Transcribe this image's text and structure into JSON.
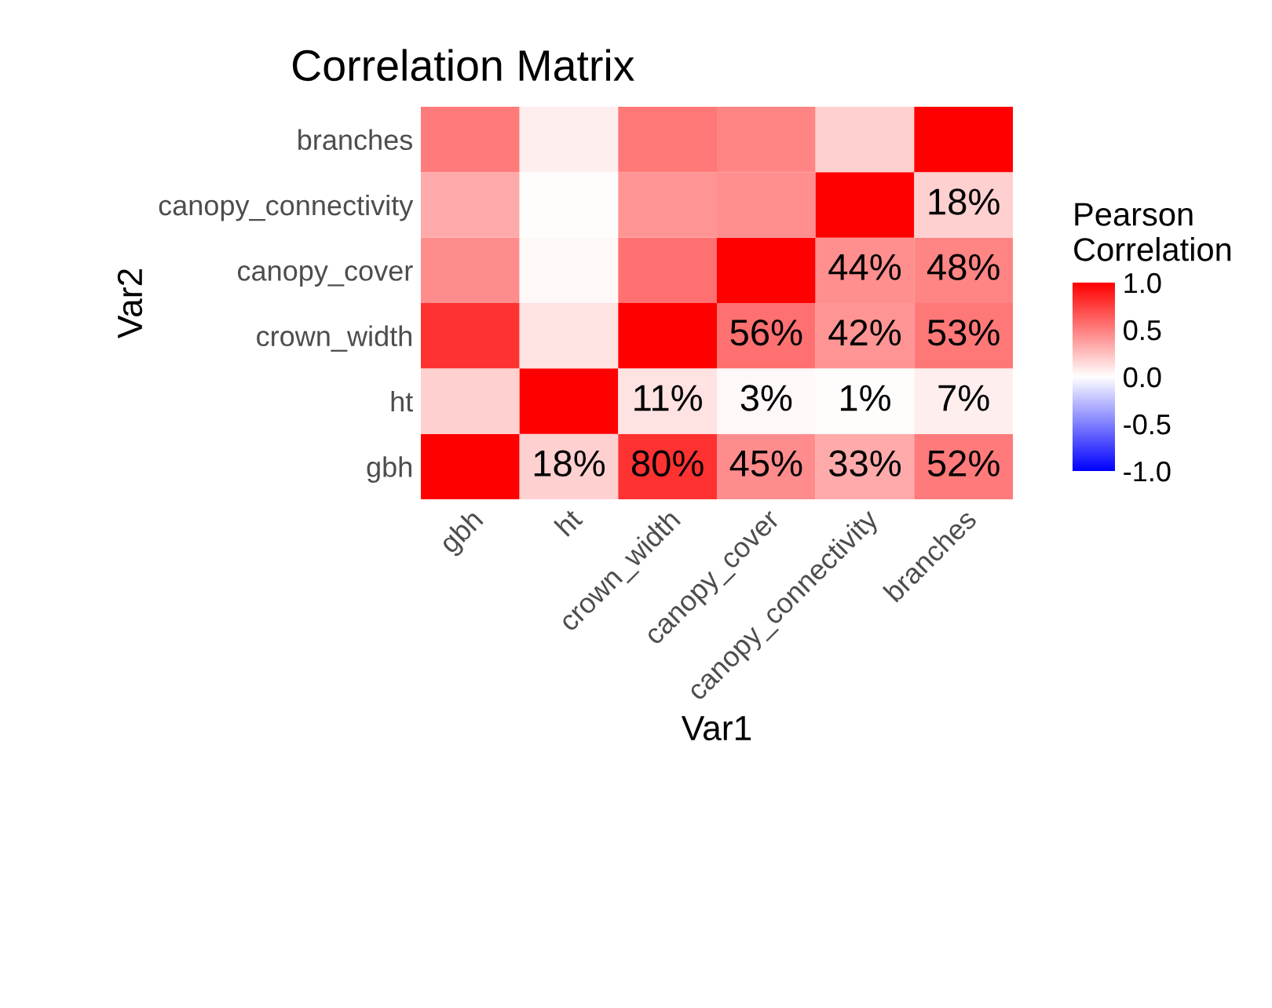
{
  "chart_data": {
    "type": "heatmap",
    "title": "Correlation Matrix",
    "xlabel": "Var1",
    "ylabel": "Var2",
    "clabel": "Pearson\nCorrelation",
    "categories": [
      "gbh",
      "ht",
      "crown_width",
      "canopy_cover",
      "canopy_connectivity",
      "branches"
    ],
    "y_categories": [
      "branches",
      "canopy_connectivity",
      "canopy_cover",
      "crown_width",
      "ht",
      "gbh"
    ],
    "cells": [
      [
        0.52,
        0.07,
        0.53,
        0.48,
        0.18,
        1
      ],
      [
        0.33,
        0.01,
        0.42,
        0.44,
        1,
        0.18
      ],
      [
        0.45,
        0.03,
        0.56,
        1,
        0.44,
        0.48
      ],
      [
        0.8,
        0.11,
        1,
        0.56,
        0.42,
        0.53
      ],
      [
        0.18,
        1,
        0.11,
        0.03,
        0.01,
        0.07
      ],
      [
        1,
        0.18,
        0.8,
        0.45,
        0.33,
        0.52
      ]
    ],
    "cell_labels": [
      [
        null,
        null,
        null,
        null,
        null,
        null
      ],
      [
        null,
        null,
        null,
        null,
        null,
        "18%"
      ],
      [
        null,
        null,
        null,
        null,
        "44%",
        "48%"
      ],
      [
        null,
        null,
        null,
        "56%",
        "42%",
        "53%"
      ],
      [
        null,
        null,
        "11%",
        "3%",
        "1%",
        "7%"
      ],
      [
        null,
        "18%",
        "80%",
        "45%",
        "33%",
        "52%"
      ]
    ],
    "clim": [
      -1,
      1
    ],
    "cticks": [
      {
        "value": 1,
        "label": "1.0"
      },
      {
        "value": 0.5,
        "label": "0.5"
      },
      {
        "value": 0,
        "label": "0.0"
      },
      {
        "value": -0.5,
        "label": "-0.5"
      },
      {
        "value": -1,
        "label": "-1.0"
      }
    ]
  }
}
